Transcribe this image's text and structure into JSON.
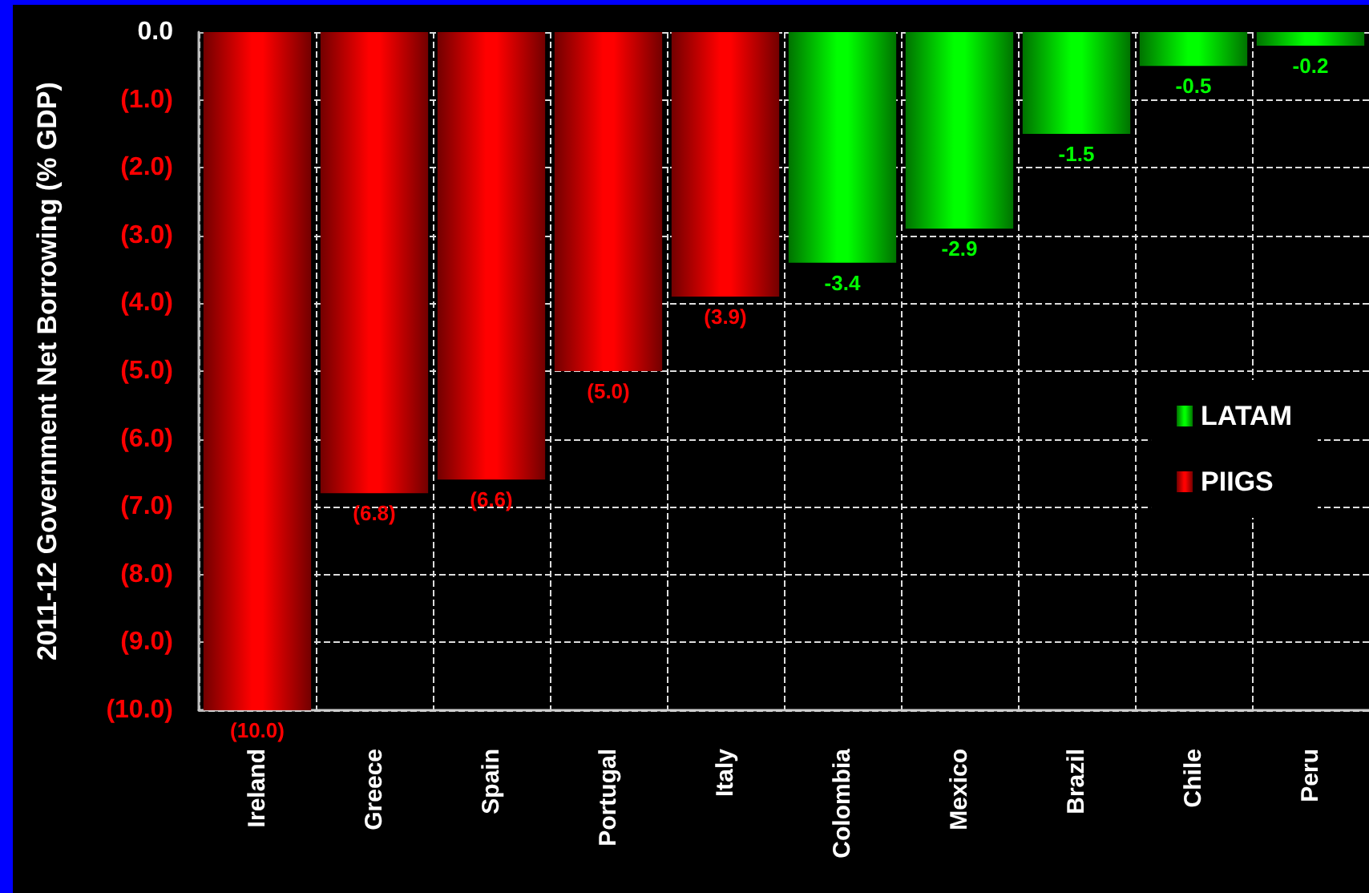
{
  "chart_data": {
    "type": "bar",
    "ylabel": "2011-12 Government Net Borrowing (% GDP)",
    "categories": [
      "Ireland",
      "Greece",
      "Spain",
      "Portugal",
      "Italy",
      "Colombia",
      "Mexico",
      "Brazil",
      "Chile",
      "Peru"
    ],
    "series": [
      {
        "name": "LATAM",
        "color": "#00ff00",
        "values": [
          null,
          null,
          null,
          null,
          null,
          -3.4,
          -2.9,
          -1.5,
          -0.5,
          -0.2
        ],
        "value_labels": [
          null,
          null,
          null,
          null,
          null,
          "-3.4",
          "-2.9",
          "-1.5",
          "-0.5",
          "-0.2"
        ]
      },
      {
        "name": "PIIGS",
        "color": "#ff0000",
        "values": [
          -10.0,
          -6.8,
          -6.6,
          -5.0,
          -3.9,
          null,
          null,
          null,
          null,
          null
        ],
        "value_labels": [
          "(10.0)",
          "(6.8)",
          "(6.6)",
          "(5.0)",
          "(3.9)",
          null,
          null,
          null,
          null,
          null
        ]
      }
    ],
    "ylim": [
      -10,
      0
    ],
    "yticks": [
      {
        "value": 0,
        "label": "0.0"
      },
      {
        "value": -1,
        "label": "(1.0)"
      },
      {
        "value": -2,
        "label": "(2.0)"
      },
      {
        "value": -3,
        "label": "(3.0)"
      },
      {
        "value": -4,
        "label": "(4.0)"
      },
      {
        "value": -5,
        "label": "(5.0)"
      },
      {
        "value": -6,
        "label": "(6.0)"
      },
      {
        "value": -7,
        "label": "(7.0)"
      },
      {
        "value": -8,
        "label": "(8.0)"
      },
      {
        "value": -9,
        "label": "(9.0)"
      },
      {
        "value": -10,
        "label": "(10.0)"
      }
    ],
    "grid": true,
    "legend": "right"
  }
}
